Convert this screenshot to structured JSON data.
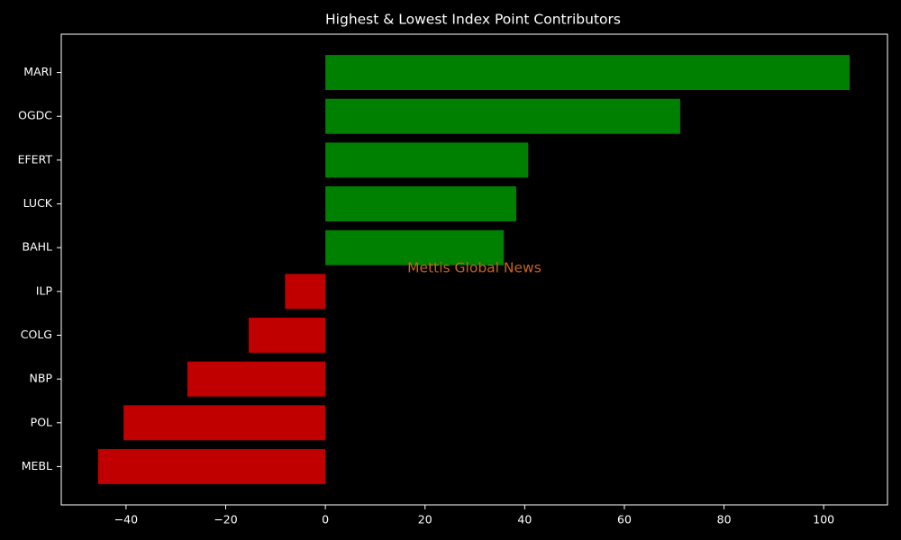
{
  "chart_data": {
    "type": "barh",
    "title": "Highest & Lowest Index Point Contributors",
    "categories": [
      "MARI",
      "OGDC",
      "EFERT",
      "LUCK",
      "BAHL",
      "ILP",
      "COLG",
      "NBP",
      "POL",
      "MEBL"
    ],
    "values": [
      105.2,
      71.2,
      40.7,
      38.3,
      35.8,
      -8.1,
      -15.4,
      -27.7,
      -40.5,
      -45.6
    ],
    "colors": [
      "#008000",
      "#008000",
      "#008000",
      "#008000",
      "#008000",
      "#c00000",
      "#c00000",
      "#c00000",
      "#c00000",
      "#c00000"
    ],
    "xlim": [
      -53,
      112.8
    ],
    "xticks": [
      {
        "value": -40,
        "label": "−40"
      },
      {
        "value": -20,
        "label": "−20"
      },
      0,
      20,
      40,
      60,
      80,
      100
    ],
    "annotation": "Mettis Global News",
    "annotation_color": "#c8641e"
  }
}
